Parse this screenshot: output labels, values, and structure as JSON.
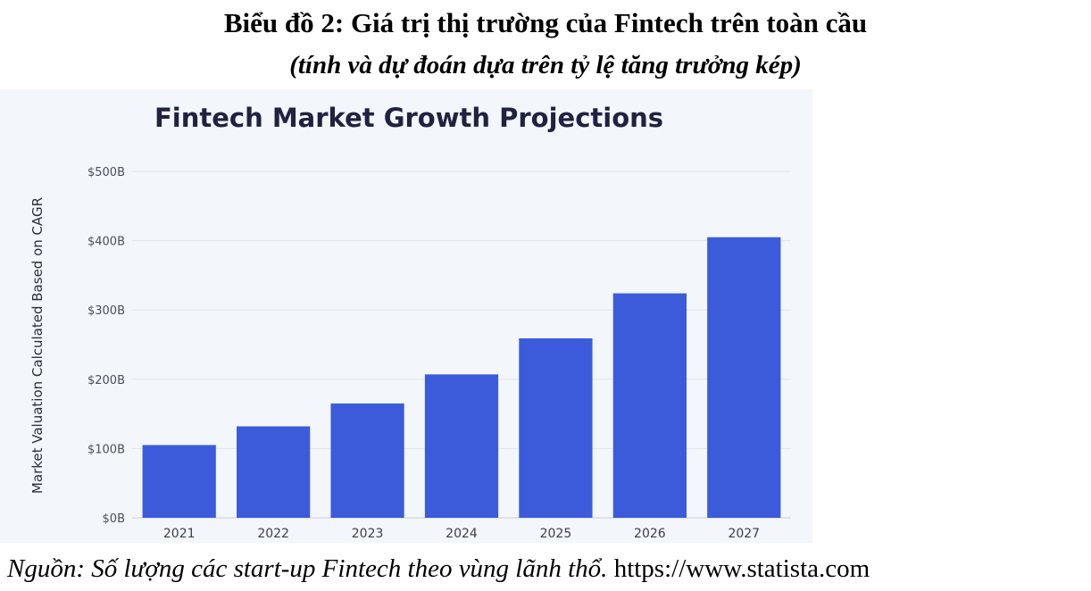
{
  "caption": {
    "title": "Biểu đồ 2: Giá trị thị trường của Fintech trên toàn cầu",
    "subtitle": "(tính và dự đoán dựa trên tỷ lệ tăng trưởng kép)"
  },
  "source": {
    "label": "Nguồn: Số lượng các start-up Fintech theo vùng lãnh thổ.",
    "url": "https://www.statista.com"
  },
  "chart_data": {
    "type": "bar",
    "title": "Fintech Market Growth Projections",
    "ylabel": "Market Valuation Calculated Based on CAGR",
    "xlabel": "",
    "categories": [
      "2021",
      "2022",
      "2023",
      "2024",
      "2025",
      "2026",
      "2027"
    ],
    "values": [
      105,
      132,
      165,
      207,
      259,
      324,
      405
    ],
    "ylim": [
      0,
      500
    ],
    "yticks": [
      0,
      100,
      200,
      300,
      400,
      500
    ],
    "ytick_labels": [
      "$0B",
      "$100B",
      "$200B",
      "$300B",
      "$400B",
      "$500B"
    ],
    "grid": true,
    "bar_color": "#3b5bdb",
    "background_color": "#f3f6fa",
    "title_color": "#1f2340"
  }
}
